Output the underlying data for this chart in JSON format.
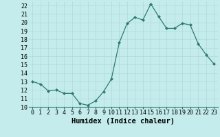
{
  "x": [
    0,
    1,
    2,
    3,
    4,
    5,
    6,
    7,
    8,
    9,
    10,
    11,
    12,
    13,
    14,
    15,
    16,
    17,
    18,
    19,
    20,
    21,
    22,
    23
  ],
  "y": [
    13.0,
    12.7,
    11.9,
    12.0,
    11.6,
    11.6,
    10.4,
    10.2,
    10.7,
    11.8,
    13.3,
    17.6,
    19.9,
    20.6,
    20.3,
    22.2,
    20.7,
    19.3,
    19.3,
    19.9,
    19.7,
    17.5,
    16.2,
    15.1
  ],
  "line_color": "#2d7a6e",
  "marker": "D",
  "marker_size": 2.0,
  "bg_color": "#c5ecec",
  "grid_color": "#b0d8d8",
  "xlabel": "Humidex (Indice chaleur)",
  "ylim": [
    10,
    22.5
  ],
  "xlim": [
    -0.5,
    23.5
  ],
  "yticks": [
    10,
    11,
    12,
    13,
    14,
    15,
    16,
    17,
    18,
    19,
    20,
    21,
    22
  ],
  "xticks": [
    0,
    1,
    2,
    3,
    4,
    5,
    6,
    7,
    8,
    9,
    10,
    11,
    12,
    13,
    14,
    15,
    16,
    17,
    18,
    19,
    20,
    21,
    22,
    23
  ],
  "tick_fontsize": 6.0,
  "xlabel_fontsize": 7.5,
  "linewidth": 0.9
}
